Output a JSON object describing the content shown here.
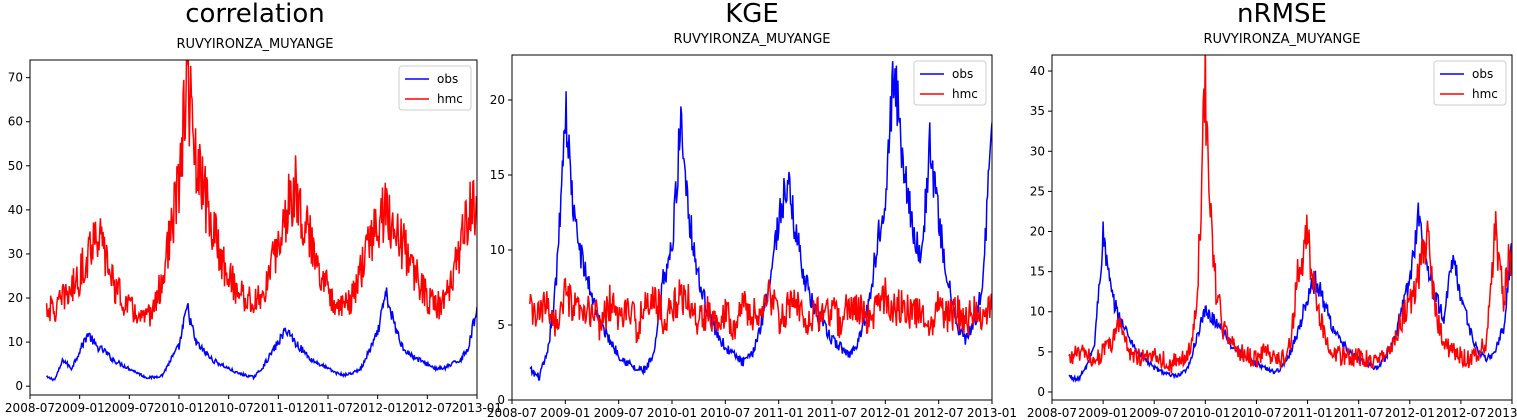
{
  "figure": {
    "background": "#ffffff"
  },
  "chart_data": [
    {
      "type": "line",
      "title": "correlation",
      "subtitle": "RUVYIRONZA_MUYANGE",
      "xlabel": "",
      "ylabel": "",
      "x_ticks": [
        "2008-07",
        "2009-01",
        "2009-07",
        "2010-01",
        "2010-07",
        "2011-01",
        "2011-07",
        "2012-01",
        "2012-07",
        "2013-01"
      ],
      "x_range": [
        "2008-07",
        "2013-01"
      ],
      "y_ticks": [
        0,
        10,
        20,
        30,
        40,
        50,
        60,
        70
      ],
      "ylim": [
        -2,
        74
      ],
      "legend": {
        "position": "top-right",
        "entries": [
          "obs",
          "hmc"
        ]
      },
      "series": [
        {
          "name": "obs",
          "color": "#0000ff",
          "x": [
            "2008-09",
            "2008-10",
            "2008-11",
            "2008-12",
            "2009-01",
            "2009-02",
            "2009-03",
            "2009-04",
            "2009-05",
            "2009-06",
            "2009-07",
            "2009-08",
            "2009-09",
            "2009-10",
            "2009-11",
            "2009-12",
            "2010-01",
            "2010-02",
            "2010-03",
            "2010-04",
            "2010-05",
            "2010-06",
            "2010-07",
            "2010-08",
            "2010-09",
            "2010-10",
            "2010-11",
            "2010-12",
            "2011-01",
            "2011-02",
            "2011-03",
            "2011-04",
            "2011-05",
            "2011-06",
            "2011-07",
            "2011-08",
            "2011-09",
            "2011-10",
            "2011-11",
            "2011-12",
            "2012-01",
            "2012-02",
            "2012-03",
            "2012-04",
            "2012-05",
            "2012-06",
            "2012-07",
            "2012-08",
            "2012-09",
            "2012-10",
            "2012-11",
            "2012-12",
            "2013-01"
          ],
          "values": [
            2,
            1.5,
            6,
            4,
            8,
            12,
            9,
            8,
            6,
            5,
            4,
            3,
            2,
            2,
            2.5,
            6,
            9,
            18,
            10,
            8,
            6,
            5,
            4,
            3,
            2.5,
            2,
            4,
            7,
            10,
            13,
            10,
            8,
            6,
            5,
            4,
            3,
            2.5,
            3,
            4,
            8,
            12,
            21,
            14,
            9,
            7,
            6,
            5,
            4,
            4,
            5,
            6,
            9,
            18
          ]
        },
        {
          "name": "hmc",
          "color": "#ff0000",
          "x": [
            "2008-09",
            "2008-10",
            "2008-11",
            "2008-12",
            "2009-01",
            "2009-02",
            "2009-03",
            "2009-04",
            "2009-05",
            "2009-06",
            "2009-07",
            "2009-08",
            "2009-09",
            "2009-10",
            "2009-11",
            "2009-12",
            "2010-01",
            "2010-02",
            "2010-03",
            "2010-04",
            "2010-05",
            "2010-06",
            "2010-07",
            "2010-08",
            "2010-09",
            "2010-10",
            "2010-11",
            "2010-12",
            "2011-01",
            "2011-02",
            "2011-03",
            "2011-04",
            "2011-05",
            "2011-06",
            "2011-07",
            "2011-08",
            "2011-09",
            "2011-10",
            "2011-11",
            "2011-12",
            "2012-01",
            "2012-02",
            "2012-03",
            "2012-04",
            "2012-05",
            "2012-06",
            "2012-07",
            "2012-08",
            "2012-09",
            "2012-10",
            "2012-11",
            "2012-12",
            "2013-01"
          ],
          "values": [
            18,
            17,
            20,
            22,
            25,
            30,
            36,
            30,
            24,
            20,
            18,
            16,
            15,
            18,
            24,
            35,
            45,
            71,
            50,
            44,
            36,
            30,
            25,
            22,
            20,
            19,
            20,
            26,
            32,
            40,
            46,
            38,
            32,
            27,
            22,
            19,
            18,
            20,
            26,
            33,
            37,
            40,
            36,
            32,
            28,
            24,
            20,
            18,
            19,
            24,
            32,
            40,
            41
          ]
        }
      ]
    },
    {
      "type": "line",
      "title": "KGE",
      "subtitle": "RUVYIRONZA_MUYANGE",
      "xlabel": "",
      "ylabel": "",
      "x_ticks": [
        "2008-07",
        "2009-01",
        "2009-07",
        "2010-01",
        "2010-07",
        "2011-01",
        "2011-07",
        "2012-01",
        "2012-07",
        "2013-01"
      ],
      "x_range": [
        "2008-07",
        "2013-01"
      ],
      "y_ticks": [
        0,
        5,
        10,
        15,
        20
      ],
      "ylim": [
        0,
        23
      ],
      "legend": {
        "position": "top-right",
        "entries": [
          "obs",
          "hmc"
        ]
      },
      "series": [
        {
          "name": "obs",
          "color": "#0000ff",
          "x": [
            "2008-09",
            "2008-10",
            "2008-11",
            "2008-12",
            "2009-01",
            "2009-02",
            "2009-03",
            "2009-04",
            "2009-05",
            "2009-06",
            "2009-07",
            "2009-08",
            "2009-09",
            "2009-10",
            "2009-11",
            "2009-12",
            "2010-01",
            "2010-02",
            "2010-03",
            "2010-04",
            "2010-05",
            "2010-06",
            "2010-07",
            "2010-08",
            "2010-09",
            "2010-10",
            "2010-11",
            "2010-12",
            "2011-01",
            "2011-02",
            "2011-03",
            "2011-04",
            "2011-05",
            "2011-06",
            "2011-07",
            "2011-08",
            "2011-09",
            "2011-10",
            "2011-11",
            "2011-12",
            "2012-01",
            "2012-02",
            "2012-03",
            "2012-04",
            "2012-05",
            "2012-06",
            "2012-07",
            "2012-08",
            "2012-09",
            "2012-10",
            "2012-11",
            "2012-12",
            "2013-01"
          ],
          "values": [
            2,
            1.5,
            3,
            8,
            19.5,
            12,
            9,
            7,
            5,
            4,
            3,
            2.5,
            2,
            2,
            3,
            8,
            10,
            18.7,
            12,
            8,
            6,
            4.5,
            3.5,
            3,
            2.5,
            3,
            5,
            8,
            12,
            14.5,
            11,
            8,
            6,
            5,
            4,
            3.5,
            3,
            4,
            6,
            10,
            14,
            22,
            16,
            12,
            9,
            17,
            12,
            8,
            5,
            4,
            5,
            8,
            18.5
          ]
        },
        {
          "name": "hmc",
          "color": "#ff0000",
          "x": [
            "2008-09",
            "2008-10",
            "2008-11",
            "2008-12",
            "2009-01",
            "2009-02",
            "2009-03",
            "2009-04",
            "2009-05",
            "2009-06",
            "2009-07",
            "2009-08",
            "2009-09",
            "2009-10",
            "2009-11",
            "2009-12",
            "2010-01",
            "2010-02",
            "2010-03",
            "2010-04",
            "2010-05",
            "2010-06",
            "2010-07",
            "2010-08",
            "2010-09",
            "2010-10",
            "2010-11",
            "2010-12",
            "2011-01",
            "2011-02",
            "2011-03",
            "2011-04",
            "2011-05",
            "2011-06",
            "2011-07",
            "2011-08",
            "2011-09",
            "2011-10",
            "2011-11",
            "2011-12",
            "2012-01",
            "2012-02",
            "2012-03",
            "2012-04",
            "2012-05",
            "2012-06",
            "2012-07",
            "2012-08",
            "2012-09",
            "2012-10",
            "2012-11",
            "2012-12",
            "2013-01"
          ],
          "values": [
            6,
            5.5,
            6.5,
            5,
            7,
            6,
            5.5,
            6,
            5,
            6.5,
            5.5,
            6,
            5,
            6,
            7,
            5.5,
            6,
            7,
            6.5,
            5,
            6,
            5.5,
            6,
            5,
            6.5,
            5.5,
            6,
            7,
            5.5,
            6,
            6.5,
            5,
            6,
            5.5,
            6,
            5,
            6.5,
            6,
            5.5,
            6,
            7,
            6,
            6.5,
            5.5,
            6,
            5,
            6.5,
            5.5,
            6,
            5,
            6,
            5.5,
            6
          ]
        }
      ]
    },
    {
      "type": "line",
      "title": "nRMSE",
      "subtitle": "RUVYIRONZA_MUYANGE",
      "xlabel": "",
      "ylabel": "",
      "x_ticks": [
        "2008-07",
        "2009-01",
        "2009-07",
        "2010-01",
        "2010-07",
        "2011-01",
        "2011-07",
        "2012-01",
        "2012-07",
        "2013-01"
      ],
      "x_range": [
        "2008-07",
        "2013-01"
      ],
      "y_ticks": [
        0,
        5,
        10,
        15,
        20,
        25,
        30,
        35,
        40
      ],
      "ylim": [
        -1,
        42
      ],
      "legend": {
        "position": "top-right",
        "entries": [
          "obs",
          "hmc"
        ]
      },
      "series": [
        {
          "name": "obs",
          "color": "#0000ff",
          "x": [
            "2008-09",
            "2008-10",
            "2008-11",
            "2008-12",
            "2009-01",
            "2009-02",
            "2009-03",
            "2009-04",
            "2009-05",
            "2009-06",
            "2009-07",
            "2009-08",
            "2009-09",
            "2009-10",
            "2009-11",
            "2009-12",
            "2010-01",
            "2010-02",
            "2010-03",
            "2010-04",
            "2010-05",
            "2010-06",
            "2010-07",
            "2010-08",
            "2010-09",
            "2010-10",
            "2010-11",
            "2010-12",
            "2011-01",
            "2011-02",
            "2011-03",
            "2011-04",
            "2011-05",
            "2011-06",
            "2011-07",
            "2011-08",
            "2011-09",
            "2011-10",
            "2011-11",
            "2011-12",
            "2012-01",
            "2012-02",
            "2012-03",
            "2012-04",
            "2012-05",
            "2012-06",
            "2012-07",
            "2012-08",
            "2012-09",
            "2012-10",
            "2012-11",
            "2012-12",
            "2013-01"
          ],
          "values": [
            2,
            1.5,
            3,
            6,
            19.5,
            12,
            9,
            7,
            5,
            4,
            3,
            2.5,
            2,
            2,
            3,
            7,
            10,
            9,
            8,
            6,
            5,
            4,
            3.5,
            3,
            2.5,
            3,
            5,
            8,
            12,
            14,
            11,
            8,
            6,
            5,
            4,
            3.5,
            3,
            4,
            6,
            10,
            14,
            22,
            16,
            12,
            9,
            17,
            12,
            8,
            5,
            4,
            5,
            8,
            18
          ]
        },
        {
          "name": "hmc",
          "color": "#ff0000",
          "x": [
            "2008-09",
            "2008-10",
            "2008-11",
            "2008-12",
            "2009-01",
            "2009-02",
            "2009-03",
            "2009-04",
            "2009-05",
            "2009-06",
            "2009-07",
            "2009-08",
            "2009-09",
            "2009-10",
            "2009-11",
            "2009-12",
            "2010-01",
            "2010-02",
            "2010-03",
            "2010-04",
            "2010-05",
            "2010-06",
            "2010-07",
            "2010-08",
            "2010-09",
            "2010-10",
            "2010-11",
            "2010-12",
            "2011-01",
            "2011-02",
            "2011-03",
            "2011-04",
            "2011-05",
            "2011-06",
            "2011-07",
            "2011-08",
            "2011-09",
            "2011-10",
            "2011-11",
            "2011-12",
            "2012-01",
            "2012-02",
            "2012-03",
            "2012-04",
            "2012-05",
            "2012-06",
            "2012-07",
            "2012-08",
            "2012-09",
            "2012-10",
            "2012-11",
            "2012-12",
            "2013-01"
          ],
          "values": [
            4,
            5,
            4.5,
            4,
            5,
            6,
            9,
            5,
            4.5,
            4,
            5,
            4,
            3.5,
            4,
            4.5,
            10,
            39,
            15,
            8,
            6,
            5,
            4.5,
            4,
            5,
            4.5,
            4,
            6,
            16,
            19,
            12,
            7,
            5,
            4.5,
            4,
            4.5,
            4,
            4,
            5,
            6,
            9,
            11,
            14,
            20,
            10,
            6,
            5,
            4.5,
            4,
            5,
            6,
            20,
            12,
            18.5
          ]
        }
      ]
    }
  ]
}
